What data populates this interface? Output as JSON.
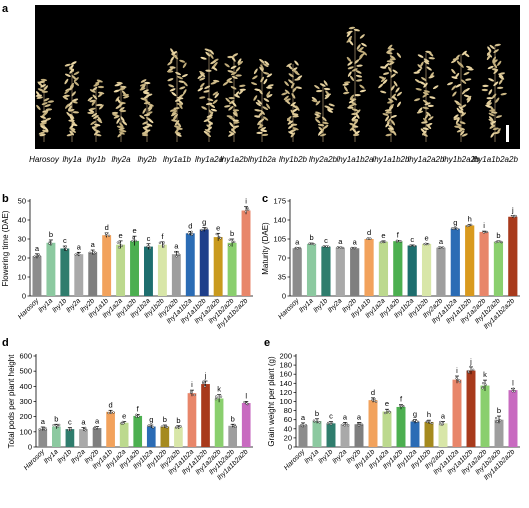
{
  "panels": {
    "a": {
      "letter": "a",
      "plants": [
        "Harosoy",
        "lhy1a",
        "lhy1b",
        "lhy2a",
        "lhy2b",
        "lhy1a1b",
        "lhy1a2a",
        "lhy1a2b",
        "lhy1b2a",
        "lhy1b2b",
        "lhy2a2b",
        "lhy1a1b2a",
        "lhy1a1b2b",
        "lhy1a2a2b",
        "lhy1b2a2b",
        "lhy1a1b2a2b"
      ]
    },
    "b": {
      "letter": "b"
    },
    "c": {
      "letter": "c"
    },
    "d": {
      "letter": "d"
    },
    "e": {
      "letter": "e"
    }
  },
  "chart_data": [
    {
      "panel": "b",
      "type": "bar",
      "ylabel": "Flowering time (DAE)",
      "ylim": [
        0,
        50
      ],
      "yticks": [
        0,
        10,
        20,
        30,
        40,
        50
      ],
      "categories": [
        "Harosoy",
        "lhy1a",
        "lhy1b",
        "lhy2a",
        "lhy2b",
        "lhy1a1b",
        "lhy1a2a",
        "lhy1a2b",
        "lhy1b2a",
        "lhy1b2b",
        "lhy2a2b",
        "lhy1a1b2a",
        "lhy1a1b2b",
        "lhy1a2a2b",
        "lhy1b2a2b",
        "lhy1a1b2a2b"
      ],
      "values": [
        21,
        28,
        25,
        22,
        23,
        32,
        27,
        29,
        26,
        27,
        22,
        33,
        35,
        31,
        28,
        45
      ],
      "errors": [
        1.2,
        1.5,
        1.3,
        1.0,
        1.2,
        1.2,
        2.0,
        2.5,
        1.5,
        1.5,
        1.5,
        1.0,
        1.0,
        2.0,
        2.0,
        2.0
      ],
      "letters": [
        "a",
        "b",
        "c",
        "a",
        "a",
        "d",
        "e",
        "e",
        "c",
        "f",
        "a",
        "d",
        "g",
        "e",
        "b",
        "i"
      ],
      "colors": [
        "#8c8c8c",
        "#8cc9a0",
        "#2f7d6d",
        "#a9a9a9",
        "#7f7f7f",
        "#f2a25c",
        "#bcd98e",
        "#4caf50",
        "#1e6e6e",
        "#d8e6a8",
        "#9e9e9e",
        "#2b6cb5",
        "#1f3f8a",
        "#c99a1e",
        "#8acf6e",
        "#e8866a"
      ]
    },
    {
      "panel": "c",
      "type": "bar",
      "ylabel": "Maturity (DAE)",
      "ylim": [
        0,
        175
      ],
      "yticks": [
        0,
        35,
        70,
        105,
        140,
        175
      ],
      "categories": [
        "Harosoy",
        "lhy1a",
        "lhy1b",
        "lhy2a",
        "lhy2b",
        "lhy1a1b",
        "lhy1a2a",
        "lhy1a2b",
        "lhy1b2a",
        "lhy1b2b",
        "lhy2a2b",
        "lhy1a1b2a",
        "lhy1a1b2b",
        "lhy1a2a2b",
        "lhy1b2a2b",
        "lhy1a1b2a2b"
      ],
      "values": [
        88,
        96,
        91,
        89,
        88,
        105,
        100,
        101,
        93,
        96,
        89,
        124,
        130,
        118,
        100,
        146
      ],
      "errors": [
        1.0,
        1.5,
        1.0,
        1.0,
        1.0,
        1.5,
        1.5,
        1.5,
        1.0,
        1.0,
        1.0,
        1.5,
        1.5,
        1.5,
        1.5,
        2.0
      ],
      "letters": [
        "a",
        "b",
        "c",
        "a",
        "a",
        "d",
        "e",
        "f",
        "c",
        "e",
        "a",
        "g",
        "h",
        "i",
        "b",
        "j"
      ],
      "colors": [
        "#8c8c8c",
        "#8cc9a0",
        "#2f7d6d",
        "#a9a9a9",
        "#7f7f7f",
        "#f2a25c",
        "#bcd98e",
        "#4caf50",
        "#1e6e6e",
        "#d8e6a8",
        "#9e9e9e",
        "#2b6cb5",
        "#d99a1e",
        "#e8866a",
        "#8acf6e",
        "#a83a1c"
      ]
    },
    {
      "panel": "d",
      "type": "bar",
      "ylabel": "Total pods per plant height",
      "ylim": [
        0,
        600
      ],
      "yticks": [
        0,
        100,
        200,
        300,
        400,
        500,
        600
      ],
      "categories": [
        "Harosoy",
        "lhy1a",
        "lhy1b",
        "lhy2a",
        "lhy2b",
        "lhy1a1b",
        "lhy1a2a",
        "lhy1a2b",
        "lhy1b2a",
        "lhy1b2b",
        "lhy2a2b",
        "lhy1a1b2a",
        "lhy1a1b2b",
        "lhy1a2a2b",
        "lhy1b2a2b",
        "lhy1a1b2a2b"
      ],
      "values": [
        120,
        135,
        118,
        118,
        125,
        232,
        160,
        205,
        135,
        135,
        130,
        355,
        415,
        320,
        140,
        290
      ],
      "errors": [
        12,
        15,
        10,
        10,
        10,
        10,
        8,
        10,
        10,
        10,
        10,
        20,
        20,
        25,
        10,
        10
      ],
      "letters": [
        "a",
        "b",
        "c",
        "a",
        "a",
        "d",
        "e",
        "f",
        "g",
        "b",
        "b",
        "i",
        "j",
        "k",
        "b",
        "l"
      ],
      "colors": [
        "#8c8c8c",
        "#8cc9a0",
        "#2f7d6d",
        "#a9a9a9",
        "#7f7f7f",
        "#f2a25c",
        "#bcd98e",
        "#4caf50",
        "#2b6cb5",
        "#a58a1e",
        "#d8e6a8",
        "#e8866a",
        "#a83a1c",
        "#8acf6e",
        "#9e9e9e",
        "#c86ac0"
      ]
    },
    {
      "panel": "e",
      "type": "bar",
      "ylabel": "Grain weight per plant (g)",
      "ylim": [
        0,
        200
      ],
      "yticks": [
        0,
        20,
        40,
        60,
        80,
        100,
        120,
        140,
        160,
        180,
        200
      ],
      "categories": [
        "Harosoy",
        "lhy1a",
        "lhy1b",
        "lhy2a",
        "lhy2b",
        "lhy1a1b",
        "lhy1a2a",
        "lhy1a2b",
        "lhy1b2a",
        "lhy1b2b",
        "lhy2a2b",
        "lhy1a1b2a",
        "lhy1a1b2b",
        "lhy1a2a2b",
        "lhy1b2a2b",
        "lhy1a1b2a2b"
      ],
      "values": [
        48,
        57,
        52,
        50,
        50,
        103,
        78,
        88,
        56,
        55,
        52,
        148,
        168,
        135,
        60,
        125
      ],
      "errors": [
        5,
        5,
        4,
        4,
        4,
        5,
        5,
        5,
        4,
        4,
        4,
        8,
        8,
        12,
        8,
        4
      ],
      "letters": [
        "a",
        "b",
        "c",
        "a",
        "a",
        "d",
        "e",
        "f",
        "g",
        "h",
        "a",
        "i",
        "j",
        "k",
        "b",
        "l"
      ],
      "colors": [
        "#8c8c8c",
        "#8cc9a0",
        "#2f7d6d",
        "#a9a9a9",
        "#7f7f7f",
        "#f2a25c",
        "#bcd98e",
        "#4caf50",
        "#2b6cb5",
        "#a58a1e",
        "#d8e6a8",
        "#e8866a",
        "#a83a1c",
        "#8acf6e",
        "#9e9e9e",
        "#c86ac0"
      ]
    }
  ]
}
